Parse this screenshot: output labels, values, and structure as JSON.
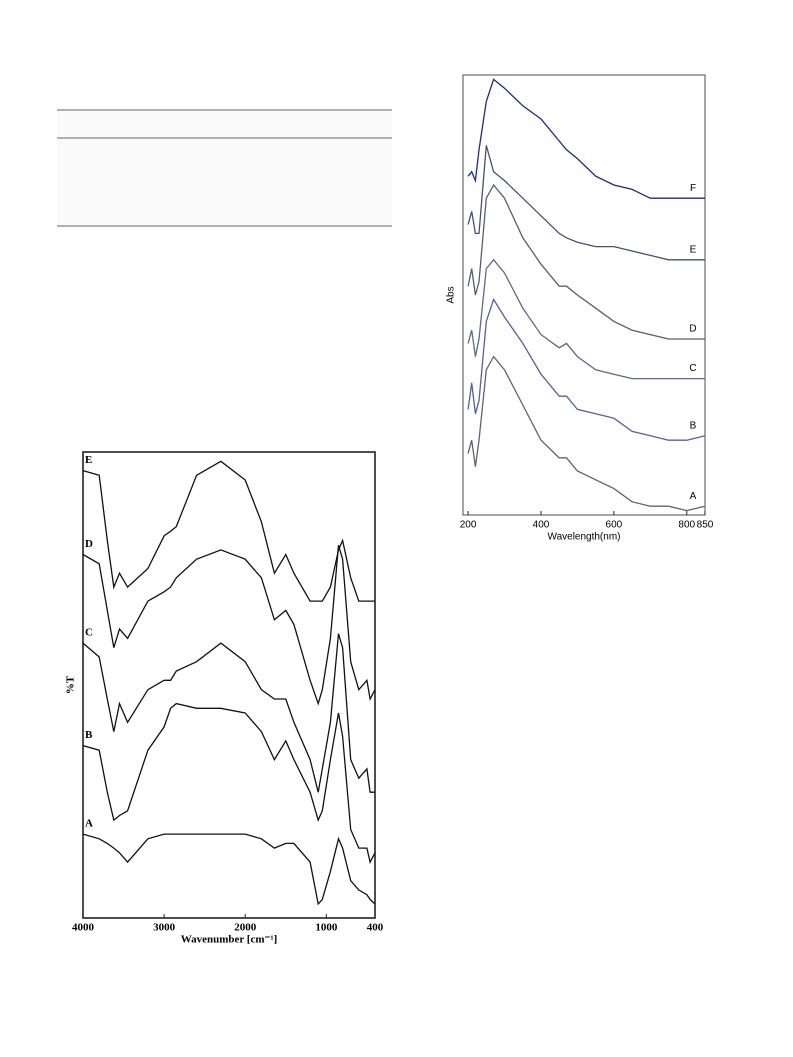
{
  "chart_data": [
    {
      "type": "line",
      "xlabel": "Wavenumber [cm⁻¹]",
      "ylabel": "%T",
      "x": [
        4000,
        3800,
        3700,
        3620,
        3550,
        3450,
        3200,
        3000,
        2920,
        2850,
        2600,
        2300,
        2000,
        1800,
        1640,
        1500,
        1400,
        1200,
        1100,
        1050,
        950,
        850,
        800,
        700,
        600,
        500,
        460,
        400
      ],
      "xlim": [
        4000,
        400
      ],
      "xticks": [
        4000,
        3000,
        2000,
        1000,
        400
      ],
      "ylim": [
        0,
        100
      ],
      "series": [
        {
          "name": "E",
          "color": "#111111",
          "values": [
            96,
            95,
            81,
            71,
            74,
            71,
            75,
            82,
            83,
            84,
            95,
            98,
            94,
            85,
            74,
            78,
            74,
            68,
            68,
            68,
            71,
            79,
            81,
            73,
            68,
            68,
            68,
            68
          ]
        },
        {
          "name": "D",
          "color": "#111111",
          "values": [
            78,
            76,
            66,
            58,
            62,
            60,
            68,
            70,
            71,
            73,
            77,
            79,
            77,
            73,
            64,
            66,
            63,
            51,
            46,
            49,
            60,
            80,
            77,
            55,
            49,
            51,
            47,
            49
          ]
        },
        {
          "name": "C",
          "color": "#111111",
          "values": [
            59,
            56,
            47,
            40,
            46,
            42,
            49,
            51,
            51,
            53,
            55,
            59,
            55,
            49,
            47,
            47,
            42,
            34,
            27,
            32,
            42,
            61,
            58,
            34,
            30,
            32,
            27,
            27
          ]
        },
        {
          "name": "B",
          "color": "#111111",
          "values": [
            37,
            36,
            27,
            21,
            22,
            23,
            36,
            41,
            45,
            46,
            45,
            45,
            44,
            40,
            34,
            38,
            34,
            27,
            21,
            23,
            34,
            44,
            39,
            19,
            15,
            15,
            12,
            14
          ]
        },
        {
          "name": "A",
          "color": "#111111",
          "values": [
            18,
            17,
            16,
            15,
            14,
            12,
            17,
            18,
            18,
            18,
            18,
            18,
            18,
            17,
            15,
            16,
            16,
            12,
            3,
            4,
            10,
            17,
            15,
            8,
            6,
            5,
            4,
            3
          ]
        }
      ]
    },
    {
      "type": "line",
      "xlabel": "Wavelength(nm)",
      "ylabel": "Abs",
      "x": [
        200,
        210,
        220,
        230,
        250,
        270,
        300,
        350,
        400,
        450,
        470,
        500,
        550,
        600,
        650,
        700,
        750,
        800,
        850
      ],
      "xlim": [
        186,
        850
      ],
      "xticks": [
        200,
        400,
        600,
        800,
        850
      ],
      "ylim": [
        0,
        100
      ],
      "series": [
        {
          "name": "F",
          "color": "#1c2a8a",
          "values": [
            77,
            78,
            76,
            83,
            94,
            99,
            97,
            93,
            90,
            85,
            83,
            81,
            77,
            75,
            74,
            72,
            72,
            72,
            72
          ]
        },
        {
          "name": "E",
          "color": "#4a4f78",
          "values": [
            66,
            69,
            64,
            64,
            84,
            78,
            76,
            72,
            68,
            64,
            63,
            62,
            61,
            61,
            60,
            59,
            58,
            58,
            58
          ]
        },
        {
          "name": "D",
          "color": "#5a5d72",
          "values": [
            52,
            56,
            50,
            53,
            72,
            75,
            72,
            63,
            57,
            52,
            52,
            50,
            47,
            44,
            42,
            41,
            40,
            40,
            40
          ]
        },
        {
          "name": "C",
          "color": "#5a6a8a",
          "values": [
            39,
            42,
            36,
            40,
            56,
            58,
            55,
            47,
            41,
            38,
            39,
            36,
            33,
            32,
            31,
            31,
            31,
            31,
            31
          ]
        },
        {
          "name": "B",
          "color": "#5560a0",
          "values": [
            24,
            30,
            23,
            26,
            44,
            49,
            45,
            39,
            32,
            27,
            27,
            24,
            23,
            22,
            19,
            18,
            17,
            17,
            18
          ]
        },
        {
          "name": "A",
          "color": "#60607a",
          "values": [
            14,
            17,
            11,
            17,
            33,
            36,
            33,
            25,
            17,
            13,
            13,
            10,
            8,
            6,
            3,
            2,
            2,
            1,
            2
          ]
        }
      ]
    }
  ]
}
